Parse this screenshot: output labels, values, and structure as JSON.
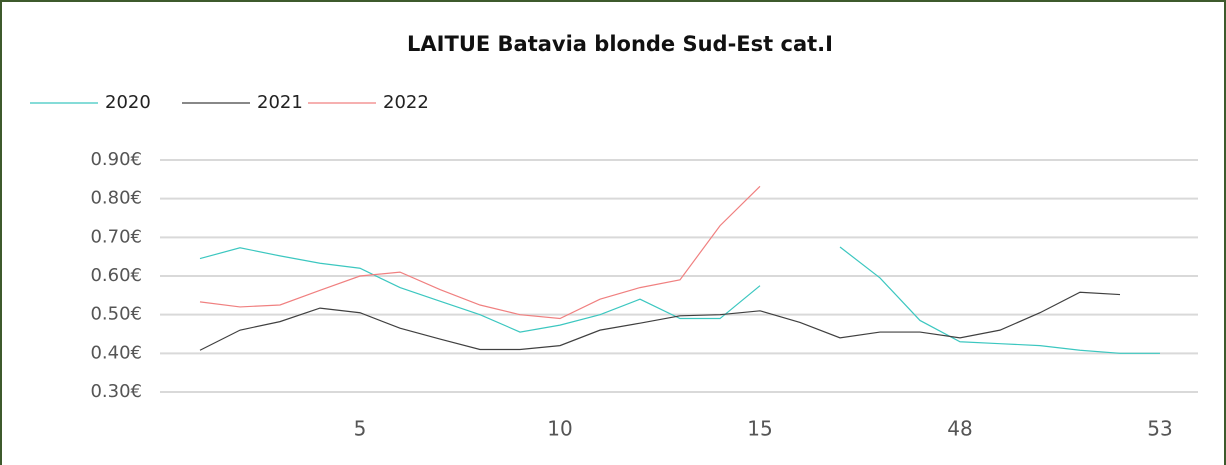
{
  "chart_data": {
    "type": "line",
    "title": "LAITUE Batavia blonde Sud-Est cat.I",
    "categories": [
      null,
      null,
      null,
      null,
      5,
      null,
      null,
      null,
      null,
      10,
      null,
      null,
      null,
      null,
      15,
      null,
      null,
      null,
      null,
      48,
      null,
      null,
      null,
      null,
      53
    ],
    "series": [
      {
        "name": "2020",
        "color": "#3cc7c0",
        "values": [
          0.645,
          0.673,
          0.652,
          0.633,
          0.62,
          0.57,
          0.535,
          0.5,
          0.455,
          0.473,
          0.5,
          0.54,
          0.49,
          0.49,
          0.575,
          null,
          0.675,
          0.595,
          0.485,
          0.43,
          0.425,
          0.42,
          0.408,
          0.4,
          0.4
        ]
      },
      {
        "name": "2021",
        "color": "#404040",
        "values": [
          0.408,
          0.46,
          0.482,
          0.517,
          0.505,
          0.465,
          0.437,
          0.41,
          0.41,
          0.42,
          0.46,
          0.478,
          0.497,
          0.5,
          0.51,
          0.48,
          0.44,
          0.455,
          0.455,
          0.44,
          0.46,
          0.505,
          0.558,
          0.552,
          null
        ]
      },
      {
        "name": "2022",
        "color": "#f08080",
        "values": [
          0.533,
          0.52,
          0.525,
          0.563,
          0.6,
          0.61,
          0.565,
          0.525,
          0.5,
          0.49,
          0.54,
          0.57,
          0.59,
          0.73,
          0.832,
          null,
          null,
          null,
          null,
          null,
          null,
          null,
          null,
          null,
          null
        ]
      }
    ],
    "ylim": [
      0.3,
      0.9
    ],
    "yticks": [
      {
        "value": 0.3,
        "label": "0.30€"
      },
      {
        "value": 0.4,
        "label": "0.40€"
      },
      {
        "value": 0.5,
        "label": "0.50€"
      },
      {
        "value": 0.6,
        "label": "0.60€"
      },
      {
        "value": 0.7,
        "label": "0.70€"
      },
      {
        "value": 0.8,
        "label": "0.80€"
      },
      {
        "value": 0.9,
        "label": "0.90€"
      }
    ],
    "grid": true,
    "legend": "top-left"
  }
}
